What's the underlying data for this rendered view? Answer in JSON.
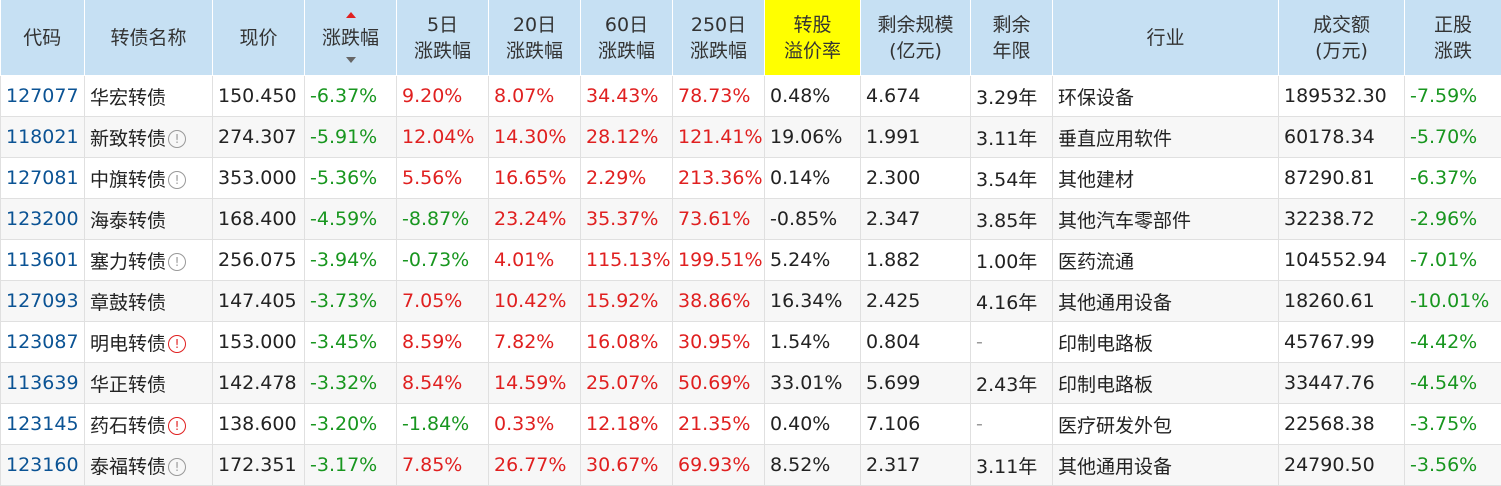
{
  "columns": [
    {
      "label": "代码",
      "width": 84
    },
    {
      "label": "转债名称",
      "width": 128
    },
    {
      "label": "现价",
      "width": 92
    },
    {
      "label": "涨跌幅",
      "width": 92,
      "sorted": true
    },
    {
      "label": "5日\n涨跌幅",
      "width": 92
    },
    {
      "label": "20日\n涨跌幅",
      "width": 92
    },
    {
      "label": "60日\n涨跌幅",
      "width": 92
    },
    {
      "label": "250日\n涨跌幅",
      "width": 92
    },
    {
      "label": "转股\n溢价率",
      "width": 96,
      "highlight": true
    },
    {
      "label": "剩余规模\n(亿元)",
      "width": 110
    },
    {
      "label": "剩余\n年限",
      "width": 82
    },
    {
      "label": "行业",
      "width": 226
    },
    {
      "label": "成交额\n(万元)",
      "width": 126
    },
    {
      "label": "正股\n涨跌",
      "width": 97
    }
  ],
  "rows": [
    {
      "code": "127077",
      "name": "华宏转债",
      "icon": "",
      "price": "150.450",
      "chg": "-6.37%",
      "chg5": "9.20%",
      "chg20": "8.07%",
      "chg60": "34.43%",
      "chg250": "78.73%",
      "premium": "0.48%",
      "scale": "4.674",
      "years": "3.29年",
      "industry": "环保设备",
      "volume": "189532.30",
      "stock_chg": "-7.59%"
    },
    {
      "code": "118021",
      "name": "新致转债",
      "icon": "info",
      "price": "274.307",
      "chg": "-5.91%",
      "chg5": "12.04%",
      "chg20": "14.30%",
      "chg60": "28.12%",
      "chg250": "121.41%",
      "premium": "19.06%",
      "scale": "1.991",
      "years": "3.11年",
      "industry": "垂直应用软件",
      "volume": "60178.34",
      "stock_chg": "-5.70%"
    },
    {
      "code": "127081",
      "name": "中旗转债",
      "icon": "info",
      "price": "353.000",
      "chg": "-5.36%",
      "chg5": "5.56%",
      "chg20": "16.65%",
      "chg60": "2.29%",
      "chg250": "213.36%",
      "premium": "0.14%",
      "scale": "2.300",
      "years": "3.54年",
      "industry": "其他建材",
      "volume": "87290.81",
      "stock_chg": "-6.37%"
    },
    {
      "code": "123200",
      "name": "海泰转债",
      "icon": "",
      "price": "168.400",
      "chg": "-4.59%",
      "chg5": "-8.87%",
      "chg20": "23.24%",
      "chg60": "35.37%",
      "chg250": "73.61%",
      "premium": "-0.85%",
      "scale": "2.347",
      "years": "3.85年",
      "industry": "其他汽车零部件",
      "volume": "32238.72",
      "stock_chg": "-2.96%"
    },
    {
      "code": "113601",
      "name": "塞力转债",
      "icon": "info",
      "price": "256.075",
      "chg": "-3.94%",
      "chg5": "-0.73%",
      "chg20": "4.01%",
      "chg60": "115.13%",
      "chg250": "199.51%",
      "premium": "5.24%",
      "scale": "1.882",
      "years": "1.00年",
      "industry": "医药流通",
      "volume": "104552.94",
      "stock_chg": "-7.01%"
    },
    {
      "code": "127093",
      "name": "章鼓转债",
      "icon": "",
      "price": "147.405",
      "chg": "-3.73%",
      "chg5": "7.05%",
      "chg20": "10.42%",
      "chg60": "15.92%",
      "chg250": "38.86%",
      "premium": "16.34%",
      "scale": "2.425",
      "years": "4.16年",
      "industry": "其他通用设备",
      "volume": "18260.61",
      "stock_chg": "-10.01%"
    },
    {
      "code": "123087",
      "name": "明电转债",
      "icon": "alert",
      "price": "153.000",
      "chg": "-3.45%",
      "chg5": "8.59%",
      "chg20": "7.82%",
      "chg60": "16.08%",
      "chg250": "30.95%",
      "premium": "1.54%",
      "scale": "0.804",
      "years": "-",
      "industry": "印制电路板",
      "volume": "45767.99",
      "stock_chg": "-4.42%"
    },
    {
      "code": "113639",
      "name": "华正转债",
      "icon": "",
      "price": "142.478",
      "chg": "-3.32%",
      "chg5": "8.54%",
      "chg20": "14.59%",
      "chg60": "25.07%",
      "chg250": "50.69%",
      "premium": "33.01%",
      "scale": "5.699",
      "years": "2.43年",
      "industry": "印制电路板",
      "volume": "33447.76",
      "stock_chg": "-4.54%"
    },
    {
      "code": "123145",
      "name": "药石转债",
      "icon": "alert",
      "price": "138.600",
      "chg": "-3.20%",
      "chg5": "-1.84%",
      "chg20": "0.33%",
      "chg60": "12.18%",
      "chg250": "21.35%",
      "premium": "0.40%",
      "scale": "7.106",
      "years": "-",
      "industry": "医疗研发外包",
      "volume": "22568.38",
      "stock_chg": "-3.75%"
    },
    {
      "code": "123160",
      "name": "泰福转债",
      "icon": "info",
      "price": "172.351",
      "chg": "-3.17%",
      "chg5": "7.85%",
      "chg20": "26.77%",
      "chg60": "30.67%",
      "chg250": "69.93%",
      "premium": "8.52%",
      "scale": "2.317",
      "years": "3.11年",
      "industry": "其他通用设备",
      "volume": "24790.50",
      "stock_chg": "-3.56%"
    }
  ],
  "icons": {
    "info": "info-circle-icon",
    "alert": "alert-circle-icon"
  },
  "colors": {
    "header_bg": "#c6e0f3",
    "highlight_bg": "#ffff00",
    "up": "#e02020",
    "down": "#18961f",
    "code": "#0b5394"
  }
}
